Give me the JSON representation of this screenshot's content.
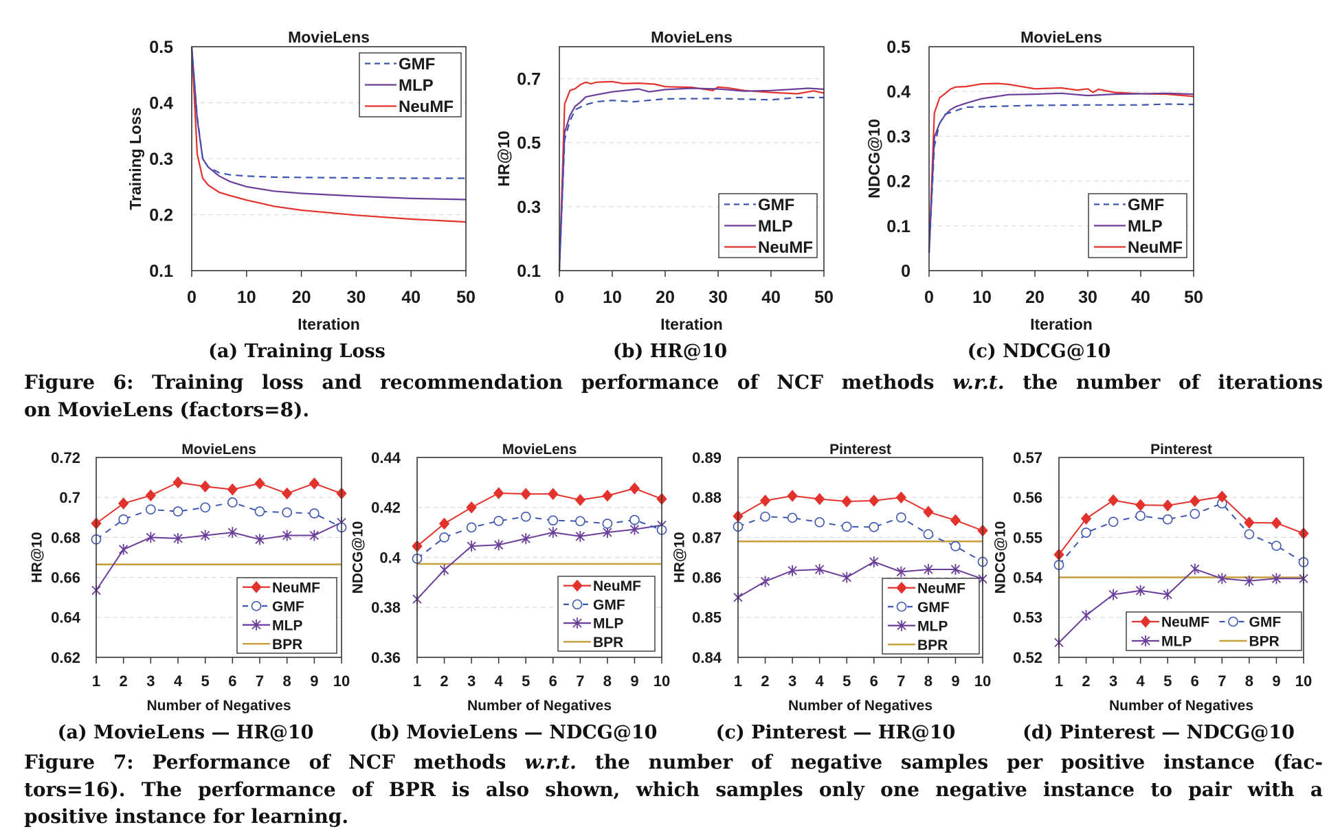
{
  "figure6": {
    "subcaptions": [
      "(a) Training Loss",
      "(b) HR@10",
      "(c) NDCG@10"
    ],
    "caption_lines": [
      [
        "Figure 6: Training loss and recommendation performance of NCF methods ",
        "w.r.t.",
        " the number of iterations"
      ],
      [
        "on MovieLens (factors=8)."
      ]
    ]
  },
  "figure7": {
    "subcaptions": [
      "(a) MovieLens — HR@10",
      "(b) MovieLens — NDCG@10",
      "(c) Pinterest — HR@10",
      "(d) Pinterest — NDCG@10"
    ],
    "caption_lines": [
      [
        "Figure 7: Performance of NCF methods ",
        "w.r.t.",
        " the number of negative samples per positive instance (fac-"
      ],
      [
        "tors=16). The performance of BPR is also shown, which samples only one negative instance to pair with a"
      ],
      [
        "positive instance for learning."
      ]
    ]
  },
  "chart_data": [
    {
      "type": "line",
      "title": "MovieLens",
      "xlabel": "Iteration",
      "ylabel": "Training Loss",
      "xlim": [
        0,
        50
      ],
      "ylim": [
        0.1,
        0.5
      ],
      "grid": true,
      "legend": "top-right",
      "xticks": [
        "0",
        "10",
        "20",
        "30",
        "40",
        "50"
      ],
      "yticks": [
        "0.1",
        "0.2",
        "0.3",
        "0.4",
        "0.5"
      ],
      "series": [
        {
          "name": "GMF",
          "color": "#3b55b0",
          "line_style": "dashed",
          "x": [
            0,
            1,
            2,
            3,
            5,
            7,
            10,
            15,
            20,
            30,
            40,
            50
          ],
          "y": [
            0.5,
            0.375,
            0.3,
            0.285,
            0.275,
            0.271,
            0.269,
            0.267,
            0.2665,
            0.2657,
            0.265,
            0.265
          ]
        },
        {
          "name": "MLP",
          "color": "#6a3d9a",
          "line_style": "solid",
          "x": [
            0,
            1,
            2,
            3,
            5,
            7,
            10,
            15,
            20,
            30,
            40,
            50
          ],
          "y": [
            0.5,
            0.37,
            0.3,
            0.285,
            0.269,
            0.259,
            0.25,
            0.242,
            0.238,
            0.233,
            0.229,
            0.227
          ]
        },
        {
          "name": "NeuMF",
          "color": "#e3312b",
          "line_style": "solid",
          "x": [
            0,
            1,
            2,
            3,
            5,
            7,
            10,
            15,
            20,
            30,
            40,
            50
          ],
          "y": [
            0.5,
            0.308,
            0.265,
            0.253,
            0.24,
            0.234,
            0.226,
            0.215,
            0.208,
            0.199,
            0.192,
            0.187
          ]
        }
      ]
    },
    {
      "type": "line",
      "title": "MovieLens",
      "xlabel": "Iteration",
      "ylabel": "HR@10",
      "xlim": [
        0,
        50
      ],
      "ylim": [
        0.1,
        0.8
      ],
      "grid": true,
      "legend": "bottom-right",
      "xticks": [
        "0",
        "10",
        "20",
        "30",
        "40",
        "50"
      ],
      "yticks": [
        "0.1",
        "0.3",
        "0.5",
        "0.7"
      ],
      "series": [
        {
          "name": "GMF",
          "color": "#3b55b0",
          "line_style": "dashed",
          "x": [
            0,
            1,
            2,
            3,
            5,
            7,
            10,
            14,
            20,
            30,
            40,
            45,
            50
          ],
          "y": [
            0.1,
            0.51,
            0.568,
            0.603,
            0.619,
            0.628,
            0.632,
            0.628,
            0.637,
            0.638,
            0.634,
            0.641,
            0.641
          ]
        },
        {
          "name": "MLP",
          "color": "#6a3d9a",
          "line_style": "solid",
          "x": [
            0,
            1,
            2,
            3,
            4,
            5,
            7,
            10,
            15,
            17,
            20,
            25,
            30,
            35,
            40,
            45,
            47,
            50
          ],
          "y": [
            0.1,
            0.532,
            0.585,
            0.614,
            0.627,
            0.643,
            0.65,
            0.659,
            0.668,
            0.659,
            0.666,
            0.67,
            0.668,
            0.661,
            0.663,
            0.668,
            0.67,
            0.667
          ]
        },
        {
          "name": "NeuMF",
          "color": "#e3312b",
          "line_style": "solid",
          "x": [
            0,
            1,
            2,
            3,
            4,
            5,
            6,
            7,
            10,
            12,
            15,
            18,
            20,
            25,
            29,
            30,
            32,
            35,
            40,
            45,
            48,
            50
          ],
          "y": [
            0.1,
            0.621,
            0.663,
            0.669,
            0.682,
            0.689,
            0.684,
            0.689,
            0.691,
            0.685,
            0.686,
            0.683,
            0.675,
            0.673,
            0.663,
            0.674,
            0.671,
            0.663,
            0.657,
            0.653,
            0.662,
            0.655
          ]
        }
      ]
    },
    {
      "type": "line",
      "title": "MovieLens",
      "xlabel": "Iteration",
      "ylabel": "NDCG@10",
      "xlim": [
        0,
        50
      ],
      "ylim": [
        0,
        0.5
      ],
      "grid": true,
      "legend": "bottom-right",
      "xticks": [
        "0",
        "10",
        "20",
        "30",
        "40",
        "50"
      ],
      "yticks": [
        "0",
        "0.1",
        "0.2",
        "0.3",
        "0.4",
        "0.5"
      ],
      "series": [
        {
          "name": "GMF",
          "color": "#3b55b0",
          "line_style": "dashed",
          "x": [
            0,
            1,
            2,
            3,
            5,
            7,
            10,
            20,
            30,
            40,
            45,
            50
          ],
          "y": [
            0.04,
            0.278,
            0.329,
            0.349,
            0.357,
            0.365,
            0.366,
            0.369,
            0.37,
            0.37,
            0.372,
            0.371
          ]
        },
        {
          "name": "MLP",
          "color": "#6a3d9a",
          "line_style": "solid",
          "x": [
            0,
            1,
            2,
            3,
            4,
            5,
            7,
            10,
            15,
            20,
            25,
            30,
            35,
            40,
            45,
            50
          ],
          "y": [
            0.04,
            0.298,
            0.329,
            0.347,
            0.359,
            0.366,
            0.374,
            0.384,
            0.393,
            0.394,
            0.396,
            0.391,
            0.394,
            0.395,
            0.396,
            0.394
          ]
        },
        {
          "name": "NeuMF",
          "color": "#e3312b",
          "line_style": "solid",
          "x": [
            0,
            1,
            2,
            3,
            4,
            5,
            7,
            10,
            13,
            15,
            20,
            25,
            28,
            30,
            31,
            32,
            35,
            40,
            45,
            50
          ],
          "y": [
            0.04,
            0.352,
            0.386,
            0.395,
            0.405,
            0.41,
            0.411,
            0.417,
            0.418,
            0.416,
            0.406,
            0.408,
            0.403,
            0.406,
            0.398,
            0.405,
            0.398,
            0.395,
            0.394,
            0.389
          ]
        }
      ]
    },
    {
      "type": "line",
      "title": "MovieLens",
      "xlabel": "Number of Negatives",
      "ylabel": "HR@10",
      "xlim": [
        1,
        10
      ],
      "ylim": [
        0.62,
        0.72
      ],
      "grid": true,
      "legend": "bottom-right",
      "xticks": [
        "1",
        "2",
        "3",
        "4",
        "5",
        "6",
        "7",
        "8",
        "9",
        "10"
      ],
      "yticks": [
        "0.62",
        "0.64",
        "0.66",
        "0.68",
        "0.7",
        "0.72"
      ],
      "series": [
        {
          "name": "NeuMF",
          "color": "#e3312b",
          "line_style": "solid",
          "marker": "diamond",
          "x": [
            1,
            2,
            3,
            4,
            5,
            6,
            7,
            8,
            9,
            10
          ],
          "y": [
            0.687,
            0.697,
            0.701,
            0.7075,
            0.7055,
            0.704,
            0.707,
            0.702,
            0.707,
            0.702
          ]
        },
        {
          "name": "GMF",
          "color": "#3b55b0",
          "line_style": "dashed",
          "marker": "circle",
          "x": [
            1,
            2,
            3,
            4,
            5,
            6,
            7,
            8,
            9,
            10
          ],
          "y": [
            0.679,
            0.689,
            0.694,
            0.693,
            0.695,
            0.6975,
            0.693,
            0.6925,
            0.692,
            0.685
          ]
        },
        {
          "name": "MLP",
          "color": "#6a3d9a",
          "line_style": "solid",
          "marker": "asterisk",
          "x": [
            1,
            2,
            3,
            4,
            5,
            6,
            7,
            8,
            9,
            10
          ],
          "y": [
            0.6535,
            0.674,
            0.68,
            0.6795,
            0.681,
            0.6825,
            0.679,
            0.681,
            0.681,
            0.6875
          ]
        },
        {
          "name": "BPR",
          "color": "#c9a040",
          "line_style": "solid",
          "marker": "none",
          "x": [
            1,
            10
          ],
          "y": [
            0.6665,
            0.6665
          ]
        }
      ]
    },
    {
      "type": "line",
      "title": "MovieLens",
      "xlabel": "Number of Negatives",
      "ylabel": "NDCG@10",
      "xlim": [
        1,
        10
      ],
      "ylim": [
        0.36,
        0.44
      ],
      "grid": true,
      "legend": "bottom-right",
      "xticks": [
        "1",
        "2",
        "3",
        "4",
        "5",
        "6",
        "7",
        "8",
        "9",
        "10"
      ],
      "yticks": [
        "0.36",
        "0.38",
        "0.4",
        "0.42",
        "0.44"
      ],
      "series": [
        {
          "name": "NeuMF",
          "color": "#e3312b",
          "line_style": "solid",
          "marker": "diamond",
          "x": [
            1,
            2,
            3,
            4,
            5,
            6,
            7,
            8,
            9,
            10
          ],
          "y": [
            0.4045,
            0.4135,
            0.42,
            0.4257,
            0.4254,
            0.4254,
            0.423,
            0.4247,
            0.4276,
            0.4234
          ]
        },
        {
          "name": "GMF",
          "color": "#3b55b0",
          "line_style": "dashed",
          "marker": "circle",
          "x": [
            1,
            2,
            3,
            4,
            5,
            6,
            7,
            8,
            9,
            10
          ],
          "y": [
            0.3995,
            0.408,
            0.412,
            0.4146,
            0.4163,
            0.4148,
            0.4145,
            0.4135,
            0.415,
            0.411
          ]
        },
        {
          "name": "MLP",
          "color": "#6a3d9a",
          "line_style": "solid",
          "marker": "asterisk",
          "x": [
            1,
            2,
            3,
            4,
            5,
            6,
            7,
            8,
            9,
            10
          ],
          "y": [
            0.3833,
            0.395,
            0.4045,
            0.405,
            0.4075,
            0.41,
            0.4084,
            0.41,
            0.4112,
            0.4129
          ]
        },
        {
          "name": "BPR",
          "color": "#c9a040",
          "line_style": "solid",
          "marker": "none",
          "x": [
            1,
            10
          ],
          "y": [
            0.3974,
            0.3974
          ]
        }
      ]
    },
    {
      "type": "line",
      "title": "Pinterest",
      "xlabel": "Number of Negatives",
      "ylabel": "HR@10",
      "xlim": [
        1,
        10
      ],
      "ylim": [
        0.84,
        0.89
      ],
      "grid": true,
      "legend": "bottom-right",
      "xticks": [
        "1",
        "2",
        "3",
        "4",
        "5",
        "6",
        "7",
        "8",
        "9",
        "10"
      ],
      "yticks": [
        "0.84",
        "0.85",
        "0.86",
        "0.87",
        "0.88",
        "0.89"
      ],
      "series": [
        {
          "name": "NeuMF",
          "color": "#e3312b",
          "line_style": "solid",
          "marker": "diamond",
          "x": [
            1,
            2,
            3,
            4,
            5,
            6,
            7,
            8,
            9,
            10
          ],
          "y": [
            0.8753,
            0.8792,
            0.8804,
            0.8796,
            0.879,
            0.8792,
            0.88,
            0.8764,
            0.8743,
            0.8717
          ]
        },
        {
          "name": "GMF",
          "color": "#3b55b0",
          "line_style": "dashed",
          "marker": "circle",
          "x": [
            1,
            2,
            3,
            4,
            5,
            6,
            7,
            8,
            9,
            10
          ],
          "y": [
            0.8727,
            0.8752,
            0.8749,
            0.8738,
            0.8727,
            0.8726,
            0.875,
            0.8708,
            0.8678,
            0.8639
          ]
        },
        {
          "name": "MLP",
          "color": "#6a3d9a",
          "line_style": "solid",
          "marker": "asterisk",
          "x": [
            1,
            2,
            3,
            4,
            5,
            6,
            7,
            8,
            9,
            10
          ],
          "y": [
            0.855,
            0.859,
            0.8617,
            0.862,
            0.86,
            0.8639,
            0.8614,
            0.862,
            0.862,
            0.8596
          ]
        },
        {
          "name": "BPR",
          "color": "#c9a040",
          "line_style": "solid",
          "marker": "none",
          "x": [
            1,
            10
          ],
          "y": [
            0.869,
            0.869
          ]
        }
      ]
    },
    {
      "type": "line",
      "title": "Pinterest",
      "xlabel": "Number of Negatives",
      "ylabel": "NDCG@10",
      "xlim": [
        1,
        10
      ],
      "ylim": [
        0.52,
        0.57
      ],
      "grid": true,
      "legend": "bottom-right",
      "xticks": [
        "1",
        "2",
        "3",
        "4",
        "5",
        "6",
        "7",
        "8",
        "9",
        "10"
      ],
      "yticks": [
        "0.52",
        "0.53",
        "0.54",
        "0.55",
        "0.56",
        "0.57"
      ],
      "series": [
        {
          "name": "NeuMF",
          "color": "#e3312b",
          "line_style": "solid",
          "marker": "diamond",
          "x": [
            1,
            2,
            3,
            4,
            5,
            6,
            7,
            8,
            9,
            10
          ],
          "y": [
            0.5457,
            0.5547,
            0.5593,
            0.5581,
            0.558,
            0.5591,
            0.5602,
            0.5537,
            0.5536,
            0.551
          ]
        },
        {
          "name": "GMF",
          "color": "#3b55b0",
          "line_style": "dashed",
          "marker": "circle",
          "x": [
            1,
            2,
            3,
            4,
            5,
            6,
            7,
            8,
            9,
            10
          ],
          "y": [
            0.5431,
            0.5512,
            0.5539,
            0.5554,
            0.5545,
            0.5559,
            0.5585,
            0.5508,
            0.5479,
            0.5438
          ]
        },
        {
          "name": "MLP",
          "color": "#6a3d9a",
          "line_style": "solid",
          "marker": "asterisk",
          "x": [
            1,
            2,
            3,
            4,
            5,
            6,
            7,
            8,
            9,
            10
          ],
          "y": [
            0.5237,
            0.5305,
            0.5357,
            0.5367,
            0.5357,
            0.5421,
            0.5397,
            0.5391,
            0.5397,
            0.5397
          ]
        },
        {
          "name": "BPR",
          "color": "#c9a040",
          "line_style": "solid",
          "marker": "none",
          "x": [
            1,
            10
          ],
          "y": [
            0.54,
            0.54
          ]
        }
      ]
    }
  ]
}
